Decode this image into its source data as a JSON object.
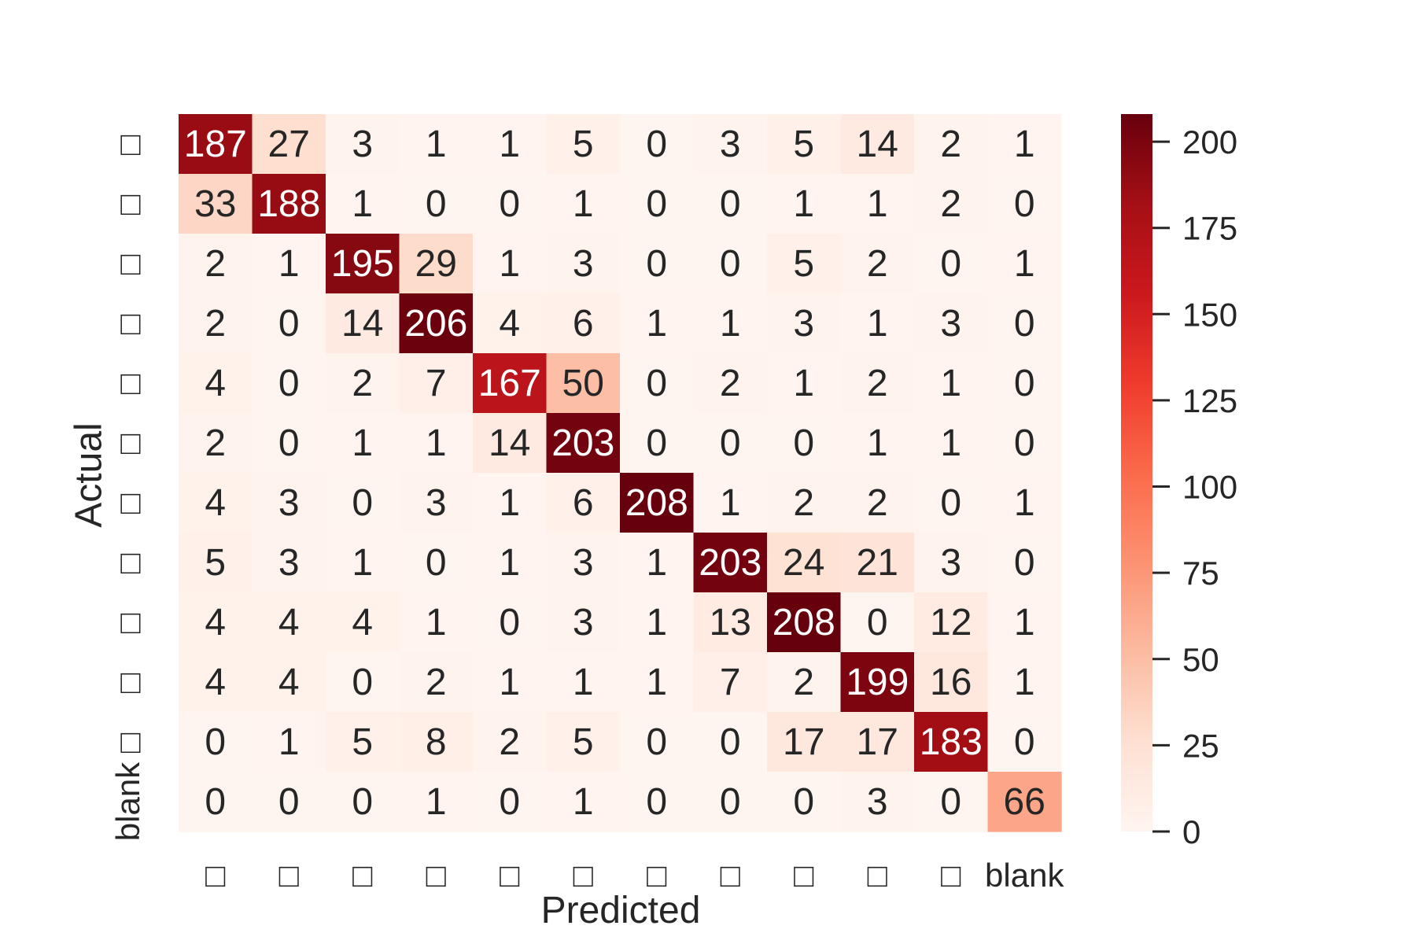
{
  "chart_data": {
    "type": "heatmap",
    "xlabel": "Predicted",
    "ylabel": "Actual",
    "x_tick_labels": [
      "□",
      "□",
      "□",
      "□",
      "□",
      "□",
      "□",
      "□",
      "□",
      "□",
      "□",
      "blank"
    ],
    "y_tick_labels": [
      "□",
      "□",
      "□",
      "□",
      "□",
      "□",
      "□",
      "□",
      "□",
      "□",
      "□",
      "blank"
    ],
    "values": [
      [
        187,
        27,
        3,
        1,
        1,
        5,
        0,
        3,
        5,
        14,
        2,
        1
      ],
      [
        33,
        188,
        1,
        0,
        0,
        1,
        0,
        0,
        1,
        1,
        2,
        0
      ],
      [
        2,
        1,
        195,
        29,
        1,
        3,
        0,
        0,
        5,
        2,
        0,
        1
      ],
      [
        2,
        0,
        14,
        206,
        4,
        6,
        1,
        1,
        3,
        1,
        3,
        0
      ],
      [
        4,
        0,
        2,
        7,
        167,
        50,
        0,
        2,
        1,
        2,
        1,
        0
      ],
      [
        2,
        0,
        1,
        1,
        14,
        203,
        0,
        0,
        0,
        1,
        1,
        0
      ],
      [
        4,
        3,
        0,
        3,
        1,
        6,
        208,
        1,
        2,
        2,
        0,
        1
      ],
      [
        5,
        3,
        1,
        0,
        1,
        3,
        1,
        203,
        24,
        21,
        3,
        0
      ],
      [
        4,
        4,
        4,
        1,
        0,
        3,
        1,
        13,
        208,
        0,
        12,
        1
      ],
      [
        4,
        4,
        0,
        2,
        1,
        1,
        1,
        7,
        2,
        199,
        16,
        1
      ],
      [
        0,
        1,
        5,
        8,
        2,
        5,
        0,
        0,
        17,
        17,
        183,
        0
      ],
      [
        0,
        0,
        0,
        1,
        0,
        1,
        0,
        0,
        0,
        3,
        0,
        66
      ]
    ],
    "colormap": "Reds",
    "vmin": 0,
    "vmax": 208,
    "colorbar_ticks": [
      0,
      25,
      50,
      75,
      100,
      125,
      150,
      175,
      200
    ],
    "colorbar_tick_labels": [
      "0",
      "25",
      "50",
      "75",
      "100",
      "125",
      "150",
      "175",
      "200"
    ],
    "colors": {
      "low": "#fff5f0",
      "mid": "#ef3b2c",
      "high": "#67000d",
      "text_dark": "#262626",
      "text_light": "#ffffff"
    }
  }
}
